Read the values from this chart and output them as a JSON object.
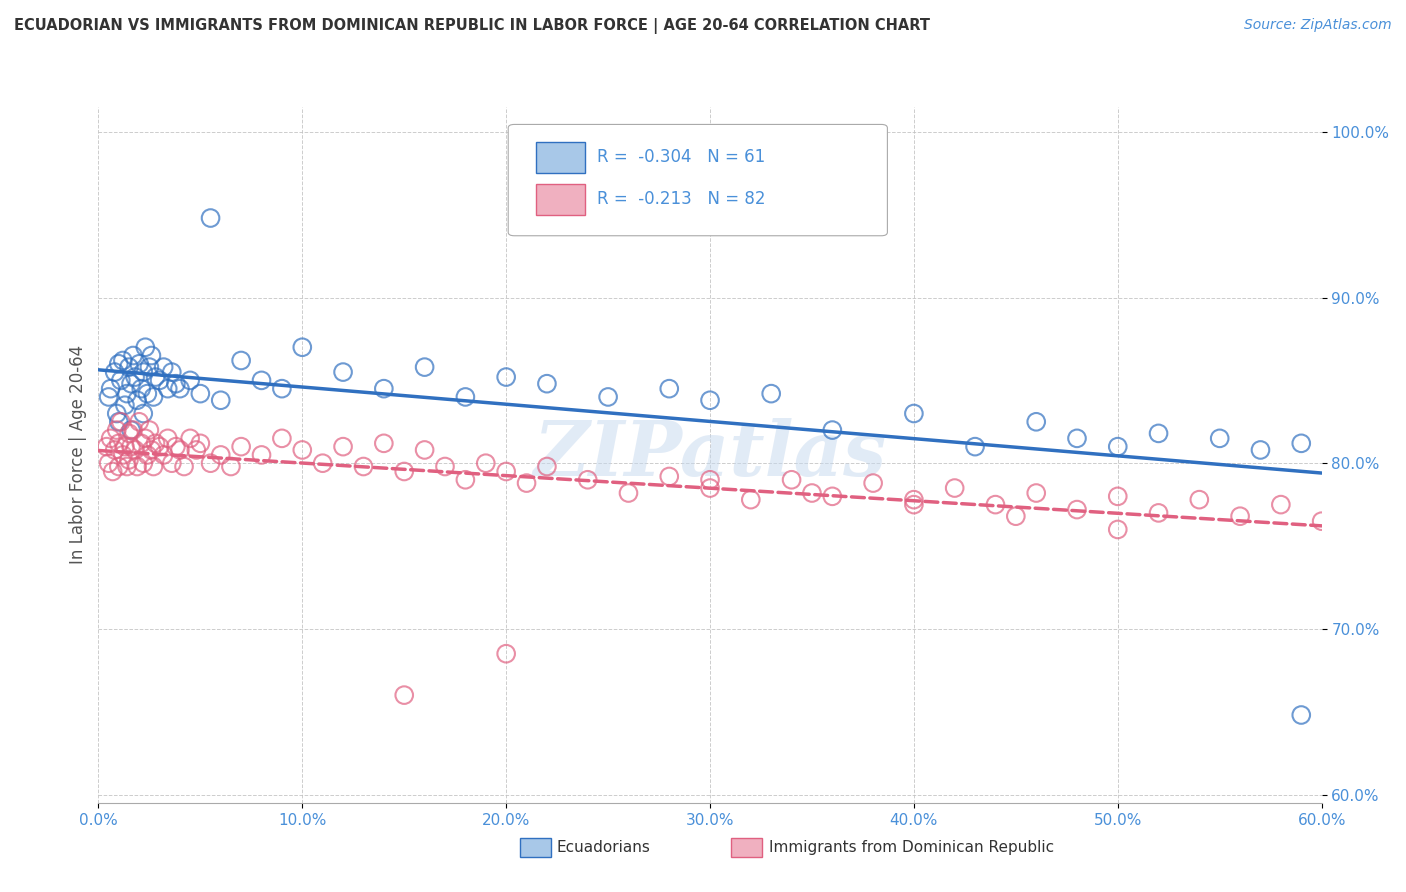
{
  "title": "ECUADORIAN VS IMMIGRANTS FROM DOMINICAN REPUBLIC IN LABOR FORCE | AGE 20-64 CORRELATION CHART",
  "source": "Source: ZipAtlas.com",
  "ylabel": "In Labor Force | Age 20-64",
  "xlim": [
    0.0,
    0.6
  ],
  "ylim": [
    0.595,
    1.015
  ],
  "yticks": [
    0.6,
    0.7,
    0.8,
    0.9,
    1.0
  ],
  "ytick_labels": [
    "60.0%",
    "70.0%",
    "80.0%",
    "90.0%",
    "100.0%"
  ],
  "xticks": [
    0.0,
    0.1,
    0.2,
    0.3,
    0.4,
    0.5,
    0.6
  ],
  "xtick_labels": [
    "0.0%",
    "10.0%",
    "20.0%",
    "30.0%",
    "40.0%",
    "50.0%",
    "60.0%"
  ],
  "blue_R": -0.304,
  "blue_N": 61,
  "pink_R": -0.213,
  "pink_N": 82,
  "blue_color": "#a8c8e8",
  "pink_color": "#f0b0c0",
  "blue_line_color": "#3070c0",
  "pink_line_color": "#e06080",
  "watermark": "ZIPatlas",
  "legend_labels": [
    "Ecuadorians",
    "Immigrants from Dominican Republic"
  ],
  "tick_color": "#4a90d9",
  "blue_scatter_x": [
    0.005,
    0.006,
    0.008,
    0.009,
    0.01,
    0.01,
    0.011,
    0.012,
    0.013,
    0.014,
    0.015,
    0.016,
    0.016,
    0.017,
    0.018,
    0.019,
    0.02,
    0.021,
    0.022,
    0.022,
    0.023,
    0.024,
    0.025,
    0.026,
    0.027,
    0.028,
    0.03,
    0.032,
    0.034,
    0.036,
    0.038,
    0.04,
    0.045,
    0.05,
    0.055,
    0.06,
    0.07,
    0.08,
    0.09,
    0.1,
    0.12,
    0.14,
    0.16,
    0.18,
    0.2,
    0.22,
    0.25,
    0.28,
    0.3,
    0.33,
    0.36,
    0.4,
    0.43,
    0.46,
    0.48,
    0.5,
    0.52,
    0.55,
    0.57,
    0.59,
    0.59
  ],
  "blue_scatter_y": [
    0.84,
    0.845,
    0.855,
    0.83,
    0.86,
    0.825,
    0.85,
    0.862,
    0.835,
    0.842,
    0.858,
    0.848,
    0.82,
    0.865,
    0.852,
    0.838,
    0.86,
    0.845,
    0.855,
    0.83,
    0.87,
    0.842,
    0.858,
    0.865,
    0.84,
    0.852,
    0.85,
    0.858,
    0.845,
    0.855,
    0.848,
    0.845,
    0.85,
    0.842,
    0.948,
    0.838,
    0.862,
    0.85,
    0.845,
    0.87,
    0.855,
    0.845,
    0.858,
    0.84,
    0.852,
    0.848,
    0.84,
    0.845,
    0.838,
    0.842,
    0.82,
    0.83,
    0.81,
    0.825,
    0.815,
    0.81,
    0.818,
    0.815,
    0.808,
    0.812,
    0.648
  ],
  "pink_scatter_x": [
    0.004,
    0.005,
    0.006,
    0.007,
    0.008,
    0.009,
    0.01,
    0.01,
    0.011,
    0.012,
    0.013,
    0.014,
    0.015,
    0.015,
    0.016,
    0.017,
    0.018,
    0.019,
    0.02,
    0.021,
    0.022,
    0.023,
    0.024,
    0.025,
    0.026,
    0.027,
    0.028,
    0.03,
    0.032,
    0.034,
    0.036,
    0.038,
    0.04,
    0.042,
    0.045,
    0.048,
    0.05,
    0.055,
    0.06,
    0.065,
    0.07,
    0.08,
    0.09,
    0.1,
    0.11,
    0.12,
    0.13,
    0.14,
    0.15,
    0.16,
    0.17,
    0.18,
    0.19,
    0.2,
    0.21,
    0.22,
    0.24,
    0.26,
    0.28,
    0.3,
    0.32,
    0.34,
    0.36,
    0.38,
    0.4,
    0.42,
    0.44,
    0.46,
    0.48,
    0.5,
    0.52,
    0.54,
    0.56,
    0.58,
    0.6,
    0.3,
    0.35,
    0.4,
    0.45,
    0.5,
    0.2,
    0.15
  ],
  "pink_scatter_y": [
    0.81,
    0.8,
    0.815,
    0.795,
    0.808,
    0.82,
    0.812,
    0.798,
    0.825,
    0.805,
    0.81,
    0.798,
    0.818,
    0.802,
    0.81,
    0.82,
    0.808,
    0.798,
    0.825,
    0.812,
    0.8,
    0.815,
    0.805,
    0.82,
    0.808,
    0.798,
    0.812,
    0.81,
    0.805,
    0.815,
    0.8,
    0.81,
    0.808,
    0.798,
    0.815,
    0.808,
    0.812,
    0.8,
    0.805,
    0.798,
    0.81,
    0.805,
    0.815,
    0.808,
    0.8,
    0.81,
    0.798,
    0.812,
    0.795,
    0.808,
    0.798,
    0.79,
    0.8,
    0.795,
    0.788,
    0.798,
    0.79,
    0.782,
    0.792,
    0.785,
    0.778,
    0.79,
    0.78,
    0.788,
    0.778,
    0.785,
    0.775,
    0.782,
    0.772,
    0.78,
    0.77,
    0.778,
    0.768,
    0.775,
    0.765,
    0.79,
    0.782,
    0.775,
    0.768,
    0.76,
    0.685,
    0.66
  ]
}
